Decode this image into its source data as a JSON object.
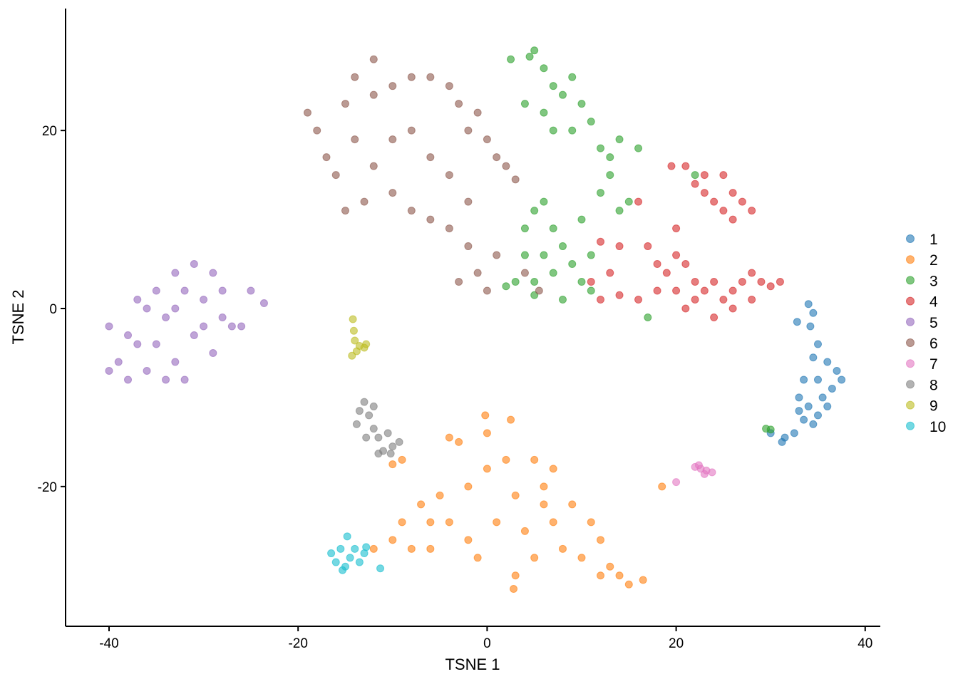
{
  "chart_data": {
    "type": "scatter",
    "xlabel": "TSNE 1",
    "ylabel": "TSNE 2",
    "xlim": [
      -44.6,
      41.6
    ],
    "ylim": [
      -35.7,
      33.7
    ],
    "xticks": [
      -40,
      -20,
      0,
      20,
      40
    ],
    "yticks": [
      -20,
      0,
      20
    ],
    "grid": false,
    "legend_placement": "right",
    "point_opacity": 0.6,
    "series": [
      {
        "name": "1",
        "color": "#1f77b4",
        "points": [
          [
            34,
            0.5
          ],
          [
            34.5,
            -0.5
          ],
          [
            34.2,
            -2
          ],
          [
            35,
            -4
          ],
          [
            34.5,
            -5.5
          ],
          [
            36,
            -6
          ],
          [
            37,
            -7
          ],
          [
            37.5,
            -8
          ],
          [
            36.5,
            -9
          ],
          [
            35,
            -8
          ],
          [
            33.5,
            -8
          ],
          [
            33,
            -10
          ],
          [
            34,
            -11
          ],
          [
            35,
            -12
          ],
          [
            36,
            -11
          ],
          [
            33.5,
            -12.5
          ],
          [
            34.5,
            -13
          ],
          [
            32.5,
            -14
          ],
          [
            31.5,
            -14.5
          ],
          [
            30,
            -14
          ],
          [
            31.2,
            -15
          ],
          [
            33,
            -11.5
          ],
          [
            35.5,
            -10
          ],
          [
            32.8,
            -1.5
          ]
        ]
      },
      {
        "name": "2",
        "color": "#ff7f0e",
        "points": [
          [
            -0.2,
            -12
          ],
          [
            2.5,
            -12.5
          ],
          [
            0,
            -14
          ],
          [
            -3,
            -15
          ],
          [
            -4,
            -14.5
          ],
          [
            2,
            -17
          ],
          [
            5,
            -17
          ],
          [
            7,
            -18
          ],
          [
            6,
            -20
          ],
          [
            3,
            -21
          ],
          [
            0,
            -18
          ],
          [
            -2,
            -20
          ],
          [
            -5,
            -21
          ],
          [
            -7,
            -22
          ],
          [
            -9,
            -24
          ],
          [
            -10,
            -26
          ],
          [
            -12,
            -27
          ],
          [
            -8,
            -27
          ],
          [
            -4,
            -24
          ],
          [
            -2,
            -26
          ],
          [
            1,
            -24
          ],
          [
            4,
            -25
          ],
          [
            7,
            -24
          ],
          [
            9,
            -22
          ],
          [
            11,
            -24
          ],
          [
            12,
            -26
          ],
          [
            10,
            -28
          ],
          [
            8,
            -27
          ],
          [
            5,
            -28
          ],
          [
            3,
            -30
          ],
          [
            13,
            -29
          ],
          [
            14,
            -30
          ],
          [
            15,
            -31
          ],
          [
            16.5,
            -30.5
          ],
          [
            12,
            -30
          ],
          [
            -6,
            -27
          ],
          [
            2.8,
            -31.5
          ],
          [
            -9,
            -17
          ],
          [
            -10,
            -17.5
          ],
          [
            18.5,
            -20
          ],
          [
            -1,
            -28
          ],
          [
            6,
            -22
          ],
          [
            -6,
            -24
          ]
        ]
      },
      {
        "name": "3",
        "color": "#2ca02c",
        "points": [
          [
            5,
            29
          ],
          [
            6,
            27
          ],
          [
            7,
            25
          ],
          [
            4,
            23
          ],
          [
            6,
            22
          ],
          [
            8,
            24
          ],
          [
            9,
            26
          ],
          [
            10,
            23
          ],
          [
            11,
            21
          ],
          [
            12,
            18
          ],
          [
            13,
            17
          ],
          [
            14,
            19
          ],
          [
            16,
            18
          ],
          [
            13,
            15
          ],
          [
            12,
            13
          ],
          [
            14,
            11
          ],
          [
            15,
            12
          ],
          [
            9,
            20
          ],
          [
            7,
            20
          ],
          [
            2.5,
            28
          ],
          [
            4.5,
            28.3
          ],
          [
            4,
            9
          ],
          [
            5,
            11
          ],
          [
            6,
            12
          ],
          [
            7,
            9
          ],
          [
            8,
            7
          ],
          [
            6,
            6
          ],
          [
            4,
            6
          ],
          [
            3,
            3
          ],
          [
            5,
            3
          ],
          [
            7,
            4
          ],
          [
            9,
            5
          ],
          [
            10,
            3
          ],
          [
            11,
            2
          ],
          [
            8,
            1
          ],
          [
            5,
            1.5
          ],
          [
            2,
            2.5
          ],
          [
            10,
            10
          ],
          [
            11,
            6
          ],
          [
            17,
            -1
          ],
          [
            29.5,
            -13.5
          ],
          [
            30,
            -13.6
          ],
          [
            22,
            15
          ]
        ]
      },
      {
        "name": "4",
        "color": "#d62728",
        "points": [
          [
            21,
            16
          ],
          [
            22,
            14
          ],
          [
            23,
            15
          ],
          [
            25,
            15
          ],
          [
            26,
            13
          ],
          [
            24,
            12
          ],
          [
            25,
            11
          ],
          [
            27,
            12
          ],
          [
            28,
            11
          ],
          [
            26,
            10
          ],
          [
            23,
            13
          ],
          [
            17,
            7
          ],
          [
            18,
            5
          ],
          [
            19,
            4
          ],
          [
            20,
            6
          ],
          [
            21,
            5
          ],
          [
            22,
            3
          ],
          [
            23,
            2
          ],
          [
            24,
            3
          ],
          [
            25,
            1
          ],
          [
            26,
            2
          ],
          [
            27,
            3
          ],
          [
            28,
            4
          ],
          [
            29,
            3
          ],
          [
            30,
            2.5
          ],
          [
            26,
            0
          ],
          [
            24,
            -1
          ],
          [
            22,
            1
          ],
          [
            20,
            2
          ],
          [
            18,
            2
          ],
          [
            16,
            1
          ],
          [
            14,
            1.5
          ],
          [
            12,
            1
          ],
          [
            11,
            3
          ],
          [
            13,
            4
          ],
          [
            14,
            7
          ],
          [
            12,
            7.5
          ],
          [
            21,
            0
          ],
          [
            28,
            1
          ],
          [
            31,
            3
          ],
          [
            16,
            12
          ],
          [
            20,
            9
          ],
          [
            19.5,
            16
          ]
        ]
      },
      {
        "name": "5",
        "color": "#9467bd",
        "points": [
          [
            -40,
            -2
          ],
          [
            -39,
            -6
          ],
          [
            -38,
            -8
          ],
          [
            -37,
            -4
          ],
          [
            -36,
            0
          ],
          [
            -35,
            2
          ],
          [
            -34,
            -1
          ],
          [
            -33,
            -6
          ],
          [
            -32,
            -8
          ],
          [
            -31,
            -3
          ],
          [
            -30,
            1
          ],
          [
            -29,
            4
          ],
          [
            -31,
            5
          ],
          [
            -33,
            4
          ],
          [
            -28,
            -1
          ],
          [
            -27,
            -2
          ],
          [
            -26,
            -2
          ],
          [
            -25,
            2
          ],
          [
            -23.6,
            0.6
          ],
          [
            -36,
            -7
          ],
          [
            -34,
            -8
          ],
          [
            -38,
            -3
          ],
          [
            -32,
            2
          ],
          [
            -29,
            -5
          ],
          [
            -35,
            -4
          ],
          [
            -30,
            -2
          ],
          [
            -28,
            2
          ],
          [
            -37,
            1
          ],
          [
            -40,
            -7
          ],
          [
            -33,
            0
          ]
        ]
      },
      {
        "name": "6",
        "color": "#8c564b",
        "points": [
          [
            -19,
            22
          ],
          [
            -18,
            20
          ],
          [
            -17,
            17
          ],
          [
            -16,
            15
          ],
          [
            -15,
            23
          ],
          [
            -14,
            26
          ],
          [
            -12,
            28
          ],
          [
            -12,
            24
          ],
          [
            -10,
            25
          ],
          [
            -8,
            26
          ],
          [
            -6,
            26
          ],
          [
            -4,
            25
          ],
          [
            -3,
            23
          ],
          [
            -2,
            20
          ],
          [
            -1,
            22
          ],
          [
            0,
            19
          ],
          [
            1,
            17
          ],
          [
            2,
            16
          ],
          [
            -14,
            19
          ],
          [
            -12,
            16
          ],
          [
            -10,
            13
          ],
          [
            -8,
            11
          ],
          [
            -6,
            10
          ],
          [
            -4,
            9
          ],
          [
            -2,
            7
          ],
          [
            -1,
            4
          ],
          [
            0,
            2
          ],
          [
            1,
            6
          ],
          [
            -8,
            20
          ],
          [
            -6,
            17
          ],
          [
            -10,
            19
          ],
          [
            -4,
            15
          ],
          [
            -2,
            12
          ],
          [
            -13,
            12
          ],
          [
            -15,
            11
          ],
          [
            4,
            4
          ],
          [
            5.5,
            2
          ],
          [
            3,
            14.5
          ],
          [
            -3,
            3
          ]
        ]
      },
      {
        "name": "7",
        "color": "#e377c2",
        "points": [
          [
            22,
            -17.8
          ],
          [
            22.6,
            -18
          ],
          [
            23.2,
            -18.2
          ],
          [
            23.8,
            -18.4
          ],
          [
            23,
            -18.6
          ],
          [
            22.4,
            -17.6
          ],
          [
            20,
            -19.5
          ]
        ]
      },
      {
        "name": "8",
        "color": "#7f7f7f",
        "points": [
          [
            -13,
            -10.5
          ],
          [
            -13.5,
            -11.5
          ],
          [
            -12.5,
            -12
          ],
          [
            -13.8,
            -13
          ],
          [
            -12,
            -13.5
          ],
          [
            -11.5,
            -14.5
          ],
          [
            -10.5,
            -14
          ],
          [
            -11,
            -16
          ],
          [
            -10,
            -15.5
          ],
          [
            -9.3,
            -15
          ],
          [
            -12.8,
            -14.5
          ],
          [
            -12,
            -11
          ],
          [
            -11.5,
            -16.3
          ],
          [
            -10.2,
            -16.3
          ]
        ]
      },
      {
        "name": "9",
        "color": "#bcbd22",
        "points": [
          [
            -14.2,
            -1.2
          ],
          [
            -14.1,
            -2.5
          ],
          [
            -14,
            -3.6
          ],
          [
            -13.5,
            -4.2
          ],
          [
            -13,
            -4.4
          ],
          [
            -14.3,
            -5.3
          ],
          [
            -12.8,
            -4
          ],
          [
            -13.8,
            -4.8
          ]
        ]
      },
      {
        "name": "10",
        "color": "#17becf",
        "points": [
          [
            -16.5,
            -27.5
          ],
          [
            -16,
            -28.5
          ],
          [
            -15.5,
            -27
          ],
          [
            -15,
            -29
          ],
          [
            -14.5,
            -28
          ],
          [
            -14,
            -27
          ],
          [
            -13.5,
            -28.5
          ],
          [
            -13,
            -27.5
          ],
          [
            -14.8,
            -25.6
          ],
          [
            -15.3,
            -29.4
          ],
          [
            -12.8,
            -26.8
          ],
          [
            -11.3,
            -29.2
          ]
        ]
      }
    ]
  }
}
